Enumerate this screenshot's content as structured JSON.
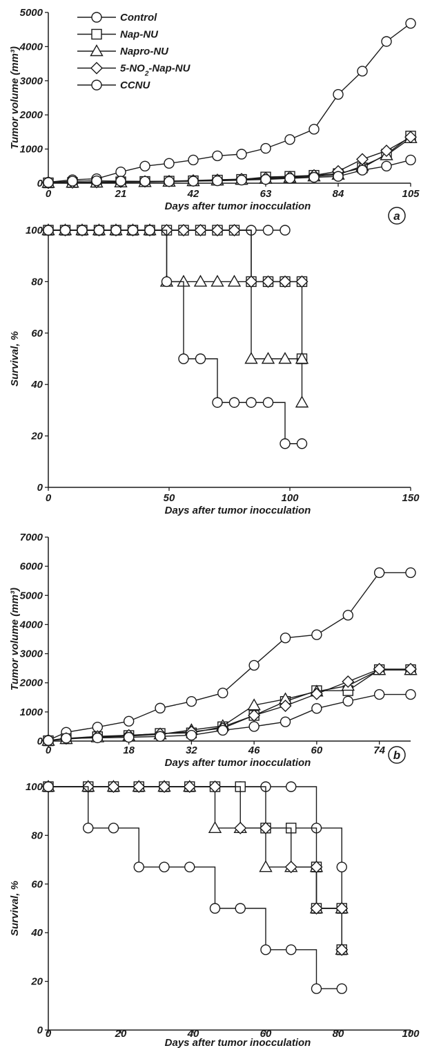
{
  "figure": {
    "legend": [
      "Control",
      "Nap-NU",
      "Napro-NU",
      "5-NO2-Nap-NU",
      "CCNU"
    ],
    "panel_labels": [
      "a",
      "b"
    ]
  },
  "chart_data": [
    {
      "id": "a-volume",
      "type": "line",
      "xlabel": "Days after tumor inocculation",
      "ylabel": "Tumor volume (mm³)",
      "xlim": [
        0,
        105
      ],
      "ylim": [
        0,
        5000
      ],
      "xticks": [
        0,
        21,
        42,
        63,
        84,
        105
      ],
      "yticks": [
        0,
        1000,
        2000,
        3000,
        4000,
        5000
      ],
      "legend_position": "top-left",
      "series": [
        {
          "name": "Control",
          "marker": "circle",
          "x": [
            0,
            7,
            14,
            21,
            28,
            35,
            42,
            49,
            56,
            63,
            70,
            77,
            84,
            91,
            98,
            105
          ],
          "y": [
            30,
            100,
            130,
            330,
            500,
            580,
            680,
            800,
            850,
            1020,
            1280,
            1580,
            2600,
            3280,
            4150,
            4680
          ]
        },
        {
          "name": "Nap-NU",
          "marker": "square",
          "x": [
            0,
            7,
            14,
            21,
            28,
            35,
            42,
            49,
            56,
            63,
            70,
            77,
            84,
            91,
            98,
            105
          ],
          "y": [
            10,
            20,
            30,
            40,
            50,
            60,
            70,
            90,
            110,
            180,
            200,
            230,
            280,
            450,
            850,
            1380
          ]
        },
        {
          "name": "Napro-NU",
          "marker": "triangle",
          "x": [
            0,
            7,
            14,
            21,
            28,
            35,
            42,
            49,
            56,
            63,
            70,
            77,
            84,
            91,
            98,
            105
          ],
          "y": [
            10,
            15,
            20,
            25,
            35,
            45,
            60,
            80,
            100,
            130,
            160,
            200,
            250,
            500,
            820,
            1320
          ]
        },
        {
          "name": "5-NO2-Nap-NU",
          "marker": "diamond",
          "x": [
            0,
            7,
            14,
            21,
            28,
            35,
            42,
            49,
            56,
            63,
            70,
            77,
            84,
            91,
            98,
            105
          ],
          "y": [
            10,
            20,
            30,
            40,
            50,
            60,
            80,
            100,
            120,
            150,
            180,
            230,
            350,
            700,
            950,
            1350
          ]
        },
        {
          "name": "CCNU",
          "marker": "circle",
          "x": [
            0,
            7,
            14,
            21,
            28,
            35,
            42,
            49,
            56,
            63,
            70,
            77,
            84,
            91,
            98,
            105
          ],
          "y": [
            20,
            60,
            70,
            60,
            55,
            50,
            60,
            70,
            90,
            110,
            140,
            170,
            200,
            380,
            500,
            680
          ]
        }
      ]
    },
    {
      "id": "a-survival",
      "type": "line",
      "step": true,
      "xlabel": "Days after tumor inocculation",
      "ylabel": "Survival, %",
      "xlim": [
        0,
        150
      ],
      "ylim": [
        0,
        100
      ],
      "xticks": [
        0,
        50,
        100,
        150
      ],
      "yticks": [
        0,
        20,
        40,
        60,
        80,
        100
      ],
      "series": [
        {
          "name": "Control",
          "marker": "circle",
          "x": [
            0,
            7,
            14,
            21,
            28,
            35,
            42,
            49,
            56,
            63,
            70,
            77,
            84,
            91,
            98
          ],
          "y": [
            100,
            100,
            100,
            100,
            100,
            100,
            100,
            100,
            100,
            100,
            100,
            100,
            100,
            100,
            100
          ]
        },
        {
          "name": "Nap-NU",
          "marker": "square",
          "x": [
            0,
            7,
            14,
            21,
            28,
            35,
            42,
            49,
            56,
            63,
            70,
            77,
            84,
            91,
            98,
            105,
            105
          ],
          "y": [
            100,
            100,
            100,
            100,
            100,
            100,
            100,
            100,
            100,
            100,
            100,
            100,
            80,
            80,
            80,
            80,
            50
          ]
        },
        {
          "name": "Napro-NU",
          "marker": "triangle",
          "x": [
            0,
            7,
            14,
            21,
            28,
            35,
            42,
            49,
            56,
            63,
            70,
            77,
            84,
            91,
            98,
            105,
            105
          ],
          "y": [
            100,
            100,
            100,
            100,
            100,
            100,
            100,
            80,
            80,
            80,
            80,
            80,
            50,
            50,
            50,
            50,
            33
          ]
        },
        {
          "name": "5-NO2-Nap-NU",
          "marker": "diamond",
          "x": [
            0,
            7,
            14,
            21,
            28,
            35,
            42,
            49,
            56,
            63,
            70,
            77,
            84,
            91,
            98,
            105
          ],
          "y": [
            100,
            100,
            100,
            100,
            100,
            100,
            100,
            100,
            100,
            100,
            100,
            100,
            80,
            80,
            80,
            80
          ]
        },
        {
          "name": "CCNU",
          "marker": "circle",
          "x": [
            0,
            7,
            14,
            21,
            28,
            35,
            42,
            49,
            56,
            63,
            70,
            77,
            84,
            91,
            98,
            105
          ],
          "y": [
            100,
            100,
            100,
            100,
            100,
            100,
            100,
            80,
            50,
            50,
            33,
            33,
            33,
            33,
            17,
            17
          ]
        }
      ]
    },
    {
      "id": "b-volume",
      "type": "line",
      "xlabel": "Days after tumor inocculation",
      "ylabel": "Tumor volume (mm³)",
      "xlim": [
        0,
        81
      ],
      "ylim": [
        0,
        7000
      ],
      "xticks": [
        0,
        18,
        32,
        46,
        60,
        74
      ],
      "yticks": [
        0,
        1000,
        2000,
        3000,
        4000,
        5000,
        6000,
        7000
      ],
      "series": [
        {
          "name": "Control",
          "marker": "circle",
          "x": [
            0,
            4,
            11,
            18,
            25,
            32,
            39,
            46,
            53,
            60,
            67,
            74,
            81
          ],
          "y": [
            30,
            300,
            480,
            680,
            1130,
            1360,
            1650,
            2600,
            3540,
            3650,
            4320,
            5780,
            5780
          ]
        },
        {
          "name": "Nap-NU",
          "marker": "square",
          "x": [
            0,
            4,
            11,
            18,
            25,
            32,
            39,
            46,
            53,
            60,
            67,
            74,
            81
          ],
          "y": [
            10,
            80,
            150,
            190,
            260,
            280,
            490,
            880,
            1360,
            1730,
            1730,
            2450,
            2450
          ]
        },
        {
          "name": "Napro-NU",
          "marker": "triangle",
          "x": [
            0,
            4,
            11,
            18,
            25,
            32,
            39,
            46,
            53,
            60,
            67,
            74,
            81
          ],
          "y": [
            10,
            70,
            130,
            170,
            230,
            380,
            520,
            1230,
            1440,
            1700,
            1900,
            2440,
            2440
          ]
        },
        {
          "name": "5-NO2-Nap-NU",
          "marker": "diamond",
          "x": [
            0,
            4,
            11,
            18,
            25,
            32,
            39,
            46,
            53,
            60,
            67,
            74,
            81
          ],
          "y": [
            10,
            90,
            160,
            200,
            250,
            320,
            440,
            880,
            1210,
            1620,
            2040,
            2470,
            2470
          ]
        },
        {
          "name": "CCNU",
          "marker": "circle",
          "x": [
            0,
            4,
            11,
            18,
            25,
            32,
            39,
            46,
            53,
            60,
            67,
            74,
            81
          ],
          "y": [
            20,
            100,
            110,
            130,
            160,
            200,
            370,
            500,
            660,
            1120,
            1370,
            1600,
            1600
          ]
        }
      ]
    },
    {
      "id": "b-survival",
      "type": "line",
      "step": true,
      "xlabel": "Days after tumor inocculation",
      "ylabel": "Survival, %",
      "xlim": [
        0,
        100
      ],
      "ylim": [
        0,
        100
      ],
      "xticks": [
        0,
        20,
        40,
        60,
        80,
        100
      ],
      "yticks": [
        0,
        20,
        40,
        60,
        80,
        100
      ],
      "series": [
        {
          "name": "Control",
          "marker": "circle",
          "x": [
            0,
            11,
            18,
            25,
            32,
            39,
            46,
            53,
            60,
            67,
            74,
            81,
            81
          ],
          "y": [
            100,
            100,
            100,
            100,
            100,
            100,
            100,
            100,
            100,
            100,
            83,
            67,
            50
          ]
        },
        {
          "name": "Nap-NU",
          "marker": "square",
          "x": [
            0,
            11,
            18,
            25,
            32,
            39,
            46,
            53,
            60,
            67,
            74,
            74,
            81,
            81
          ],
          "y": [
            100,
            100,
            100,
            100,
            100,
            100,
            100,
            100,
            83,
            83,
            67,
            50,
            50,
            33
          ]
        },
        {
          "name": "Napro-NU",
          "marker": "triangle",
          "x": [
            0,
            11,
            18,
            25,
            32,
            39,
            46,
            53,
            60,
            67,
            74,
            74,
            81,
            81
          ],
          "y": [
            100,
            100,
            100,
            100,
            100,
            100,
            83,
            83,
            67,
            67,
            67,
            50,
            50,
            33
          ]
        },
        {
          "name": "5-NO2-Nap-NU",
          "marker": "diamond",
          "x": [
            0,
            11,
            18,
            25,
            32,
            39,
            46,
            53,
            60,
            67,
            74,
            74,
            81,
            81
          ],
          "y": [
            100,
            100,
            100,
            100,
            100,
            100,
            100,
            83,
            83,
            67,
            67,
            50,
            50,
            33
          ]
        },
        {
          "name": "CCNU",
          "marker": "circle",
          "x": [
            0,
            11,
            18,
            25,
            32,
            39,
            46,
            53,
            60,
            67,
            74,
            81
          ],
          "y": [
            100,
            83,
            83,
            67,
            67,
            67,
            50,
            50,
            33,
            33,
            17,
            17
          ]
        }
      ]
    }
  ]
}
